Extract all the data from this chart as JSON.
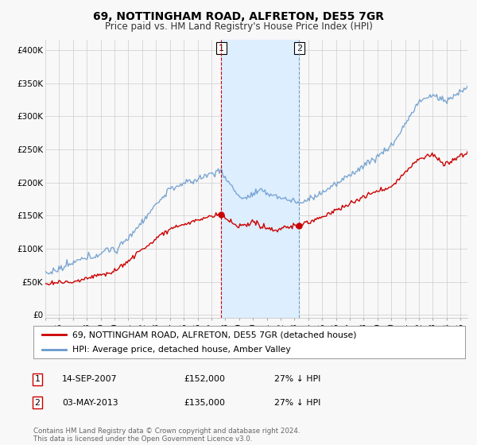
{
  "title": "69, NOTTINGHAM ROAD, ALFRETON, DE55 7GR",
  "subtitle": "Price paid vs. HM Land Registry's House Price Index (HPI)",
  "ylabel_ticks": [
    "£0",
    "£50K",
    "£100K",
    "£150K",
    "£200K",
    "£250K",
    "£300K",
    "£350K",
    "£400K"
  ],
  "ytick_vals": [
    0,
    50000,
    100000,
    150000,
    200000,
    250000,
    300000,
    350000,
    400000
  ],
  "ylim": [
    -5000,
    415000
  ],
  "xlim_start": 1995.0,
  "xlim_end": 2025.5,
  "marker1_x": 2007.71,
  "marker1_y": 152000,
  "marker2_x": 2013.34,
  "marker2_y": 135000,
  "shade_x1": 2007.71,
  "shade_x2": 2013.34,
  "legend_line1": "69, NOTTINGHAM ROAD, ALFRETON, DE55 7GR (detached house)",
  "legend_line2": "HPI: Average price, detached house, Amber Valley",
  "footer": "Contains HM Land Registry data © Crown copyright and database right 2024.\nThis data is licensed under the Open Government Licence v3.0.",
  "line_color_red": "#cc0000",
  "line_color_blue": "#6699cc",
  "shade_color": "#ddeeff",
  "background_color": "#f8f8f8",
  "grid_color": "#cccccc",
  "title_fontsize": 10,
  "subtitle_fontsize": 8.5
}
